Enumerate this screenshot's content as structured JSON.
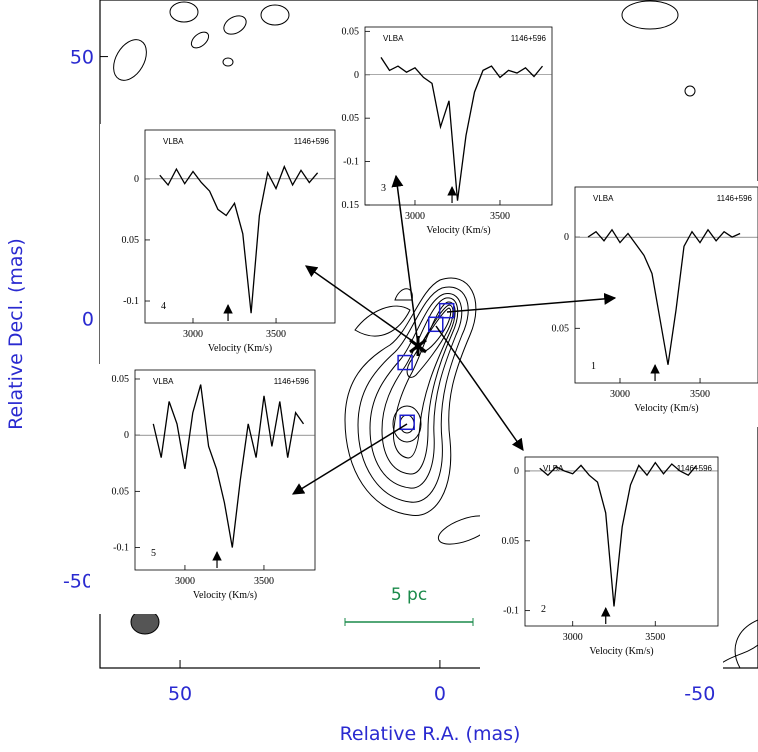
{
  "chart_data": {
    "type": "contour-map",
    "xlabel": "Relative R.A. (mas)",
    "ylabel": "Relative Decl. (mas)",
    "xlim": [
      65.4,
      -61.2
    ],
    "ylim": [
      -66.7,
      60.8
    ],
    "xticks": [
      50,
      0,
      -50
    ],
    "yticks": [
      50,
      0,
      -50
    ],
    "components": {
      "x": [
        -1.3,
        0.8,
        6.7,
        6.3
      ],
      "y": [
        1.5,
        -1.1,
        -8.4,
        -19.8
      ],
      "color": "#1c1cd0"
    },
    "scale_bar_label": "5 pc",
    "scale_bar_color": "#1a8a4a",
    "spectra": [
      {
        "type": "line",
        "number": "1",
        "telescope": "VLBA",
        "source": "1146+596",
        "xlabel": "Velocity (Km/s)",
        "xlim": [
          2719,
          3862
        ],
        "xticks": [
          3000,
          3500
        ],
        "ylim": [
          -0.08,
          0.0275
        ],
        "yticks": [
          0,
          {
            "value": -0.05,
            "label": "0.05"
          }
        ],
        "arrow_velocity": 3219,
        "x": [
          2800,
          2850,
          2900,
          2950,
          3000,
          3050,
          3100,
          3150,
          3200,
          3250,
          3300,
          3350,
          3400,
          3450,
          3500,
          3550,
          3600,
          3650,
          3700,
          3750
        ],
        "values": [
          0,
          0.003,
          -0.002,
          0.004,
          -0.003,
          0.002,
          -0.004,
          -0.01,
          -0.02,
          -0.045,
          -0.07,
          -0.04,
          -0.005,
          0.003,
          -0.003,
          0.004,
          -0.002,
          0.003,
          0,
          0.002
        ]
      },
      {
        "type": "line",
        "number": "2",
        "telescope": "VLBA",
        "source": "1146+596",
        "xlabel": "Velocity (Km/s)",
        "xlim": [
          2711,
          3880
        ],
        "xticks": [
          3000,
          3500
        ],
        "ylim": [
          -0.111,
          0.01
        ],
        "yticks": [
          0,
          {
            "value": -0.05,
            "label": "0.05"
          },
          -0.1
        ],
        "arrow_velocity": 3200,
        "x": [
          2800,
          2850,
          2900,
          2950,
          3000,
          3050,
          3100,
          3150,
          3200,
          3250,
          3300,
          3350,
          3400,
          3450,
          3500,
          3550,
          3600,
          3650,
          3700,
          3750
        ],
        "values": [
          0.002,
          -0.003,
          0.003,
          0,
          -0.002,
          0.004,
          -0.003,
          -0.008,
          -0.03,
          -0.097,
          -0.04,
          -0.01,
          0.004,
          -0.003,
          0.006,
          -0.002,
          0.005,
          0,
          -0.003,
          0.004
        ]
      },
      {
        "type": "line",
        "number": "3",
        "telescope": "VLBA",
        "source": "1146+596",
        "xlabel": "Velocity (Km/s)",
        "xlim": [
          2706,
          3806
        ],
        "xticks": [
          3000,
          3500
        ],
        "ylim": [
          -0.15,
          0.055
        ],
        "yticks": [
          0.05,
          0,
          {
            "value": -0.05,
            "label": "0.05"
          },
          -0.1,
          {
            "value": -0.15,
            "label": "0.15"
          }
        ],
        "arrow_velocity": 3218,
        "x": [
          2800,
          2850,
          2900,
          2950,
          3000,
          3050,
          3100,
          3150,
          3200,
          3250,
          3300,
          3350,
          3400,
          3450,
          3500,
          3550,
          3600,
          3650,
          3700,
          3750
        ],
        "values": [
          0.02,
          0.005,
          0.01,
          0.003,
          0.008,
          -0.003,
          -0.01,
          -0.06,
          -0.03,
          -0.145,
          -0.07,
          -0.02,
          0.005,
          0.01,
          -0.003,
          0.005,
          0.002,
          0.008,
          -0.002,
          0.01
        ]
      },
      {
        "type": "line",
        "number": "4",
        "telescope": "VLBA",
        "source": "1146+596",
        "xlabel": "Velocity (Km/s)",
        "xlim": [
          2711,
          3855
        ],
        "xticks": [
          3000,
          3500
        ],
        "ylim": [
          -0.118,
          0.04
        ],
        "yticks": [
          0,
          {
            "value": -0.05,
            "label": "0.05"
          },
          -0.1
        ],
        "arrow_velocity": 3211,
        "x": [
          2800,
          2850,
          2900,
          2950,
          3000,
          3050,
          3100,
          3150,
          3200,
          3250,
          3300,
          3350,
          3400,
          3450,
          3500,
          3550,
          3600,
          3650,
          3700,
          3750
        ],
        "values": [
          0.003,
          -0.005,
          0.008,
          -0.004,
          0.006,
          -0.003,
          -0.01,
          -0.025,
          -0.03,
          -0.02,
          -0.045,
          -0.11,
          -0.03,
          0.005,
          -0.008,
          0.01,
          -0.005,
          0.007,
          -0.003,
          0.005
        ]
      },
      {
        "type": "line",
        "number": "5",
        "telescope": "VLBA",
        "source": "1146+596",
        "xlabel": "Velocity (Km/s)",
        "xlim": [
          2684,
          3823
        ],
        "xticks": [
          3000,
          3500
        ],
        "ylim": [
          -0.12,
          0.058
        ],
        "yticks": [
          0.05,
          0,
          {
            "value": -0.05,
            "label": "0.05"
          },
          -0.1
        ],
        "arrow_velocity": 3203,
        "x": [
          2800,
          2850,
          2900,
          2950,
          3000,
          3050,
          3100,
          3150,
          3200,
          3250,
          3300,
          3350,
          3400,
          3450,
          3500,
          3550,
          3600,
          3650,
          3700,
          3750
        ],
        "values": [
          0.01,
          -0.02,
          0.03,
          0.01,
          -0.03,
          0.02,
          0.045,
          -0.01,
          -0.03,
          -0.06,
          -0.1,
          -0.04,
          0.01,
          -0.02,
          0.035,
          -0.01,
          0.03,
          -0.02,
          0.02,
          0.01
        ]
      }
    ]
  }
}
